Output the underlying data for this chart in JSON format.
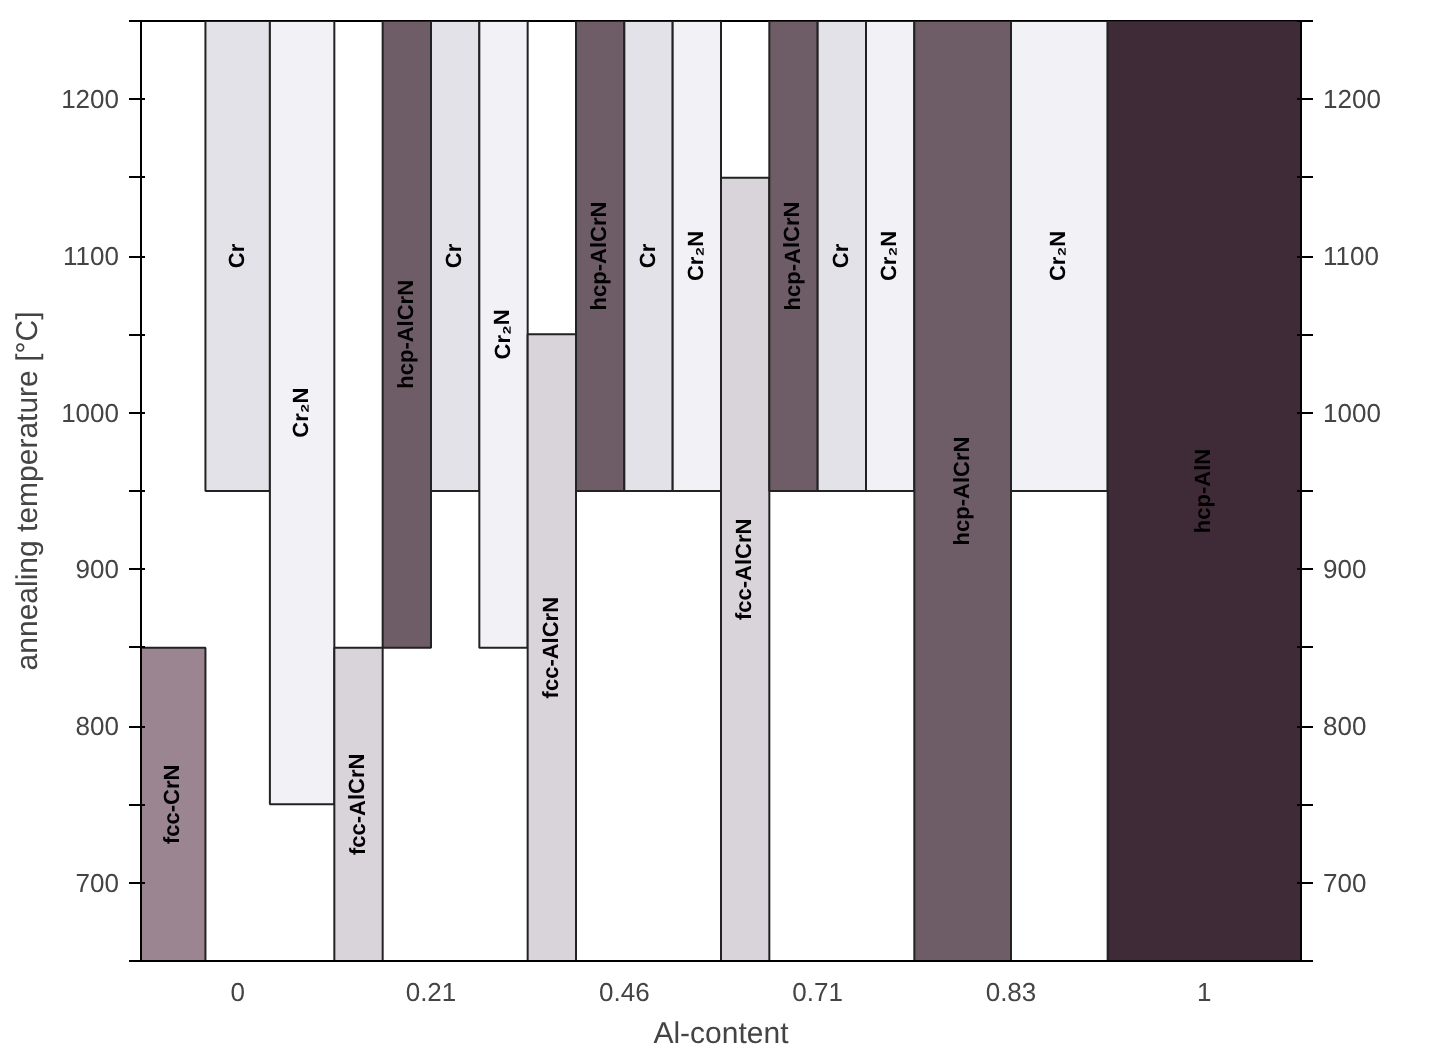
{
  "chart_data": {
    "type": "bar",
    "xlabel": "Al-content",
    "ylabel": "annealing temperature [°C]",
    "categories": [
      "0",
      "0.21",
      "0.46",
      "0.71",
      "0.83",
      "1"
    ],
    "series": [
      {
        "name": "fcc-CrN",
        "color": "#9a8590",
        "base": [
          650,
          null,
          null,
          null,
          null,
          null
        ],
        "values": [
          200,
          null,
          null,
          null,
          null,
          null
        ]
      },
      {
        "name": "fcc-AlCrN",
        "color": "#d9d4da",
        "base": [
          null,
          650,
          650,
          650,
          null,
          null
        ],
        "values": [
          null,
          200,
          400,
          500,
          null,
          null
        ]
      },
      {
        "name": "hcp-AlCrN",
        "color": "#6e5d66",
        "base": [
          null,
          850,
          950,
          950,
          650,
          null
        ],
        "values": [
          null,
          400,
          300,
          300,
          600,
          null
        ]
      },
      {
        "name": "hcp-AlN",
        "color": "#3f2b37",
        "base": [
          null,
          null,
          null,
          null,
          null,
          650
        ],
        "values": [
          null,
          null,
          null,
          null,
          null,
          600
        ]
      },
      {
        "name": "Cr",
        "color": "#e2e2e8",
        "base": [
          950,
          950,
          950,
          950,
          null,
          null
        ],
        "values": [
          300,
          300,
          300,
          300,
          null,
          null
        ]
      },
      {
        "name": "Cr₂N",
        "color": "#f2f2f6",
        "base": [
          750,
          850,
          950,
          950,
          950,
          null
        ],
        "values": [
          500,
          400,
          300,
          300,
          300,
          null
        ]
      }
    ],
    "ylim": [
      650,
      1250
    ],
    "yticks": [
      {
        "value": 650,
        "label": null
      },
      700,
      {
        "value": 750,
        "label": null
      },
      800,
      {
        "value": 850,
        "label": null
      },
      900,
      {
        "value": 950,
        "label": null
      },
      1000,
      {
        "value": 1050,
        "label": null
      },
      1100,
      {
        "value": 1150,
        "label": null
      },
      1200,
      {
        "value": 1250,
        "label": null
      }
    ],
    "y2lim": [
      650,
      1250
    ],
    "y2ticks": [
      {
        "value": 650,
        "label": null
      },
      700,
      {
        "value": 750,
        "label": null
      },
      800,
      {
        "value": 850,
        "label": null
      },
      900,
      {
        "value": 950,
        "label": null
      },
      1000,
      {
        "value": 1050,
        "label": null
      },
      1100,
      {
        "value": 1150,
        "label": null
      },
      1200,
      {
        "value": 1250,
        "label": null
      }
    ]
  }
}
